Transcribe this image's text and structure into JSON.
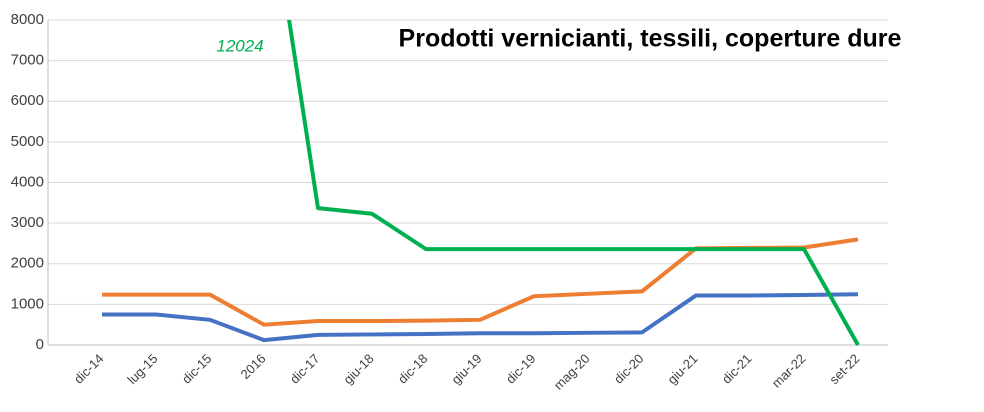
{
  "chart_data": {
    "type": "line",
    "title": "Prodotti vernicianti, tessili, coperture dure",
    "categories": [
      "dic-14",
      "lug-15",
      "dic-15",
      "2016",
      "dic-17",
      "giu-18",
      "dic-18",
      "giu-19",
      "dic-19",
      "mag-20",
      "dic-20",
      "giu-21",
      "dic-21",
      "mar-22",
      "set-22"
    ],
    "series": [
      {
        "color": "#4472c4",
        "values": [
          750,
          750,
          620,
          120,
          250,
          260,
          270,
          290,
          290,
          300,
          310,
          1220,
          1220,
          1230,
          1250
        ]
      },
      {
        "color": "#ed7d31",
        "values": [
          1240,
          1240,
          1240,
          500,
          590,
          590,
          600,
          620,
          1200,
          1260,
          1320,
          2380,
          2390,
          2400,
          2600
        ]
      },
      {
        "color": "#00b050",
        "values": [
          null,
          null,
          null,
          12024,
          3370,
          3230,
          2360,
          2360,
          2360,
          2360,
          2360,
          2360,
          2360,
          2360,
          0
        ]
      }
    ],
    "ylim": [
      0,
      8000
    ],
    "yticks": [
      0,
      1000,
      2000,
      3000,
      4000,
      5000,
      6000,
      7000,
      8000
    ],
    "grid": true
  }
}
